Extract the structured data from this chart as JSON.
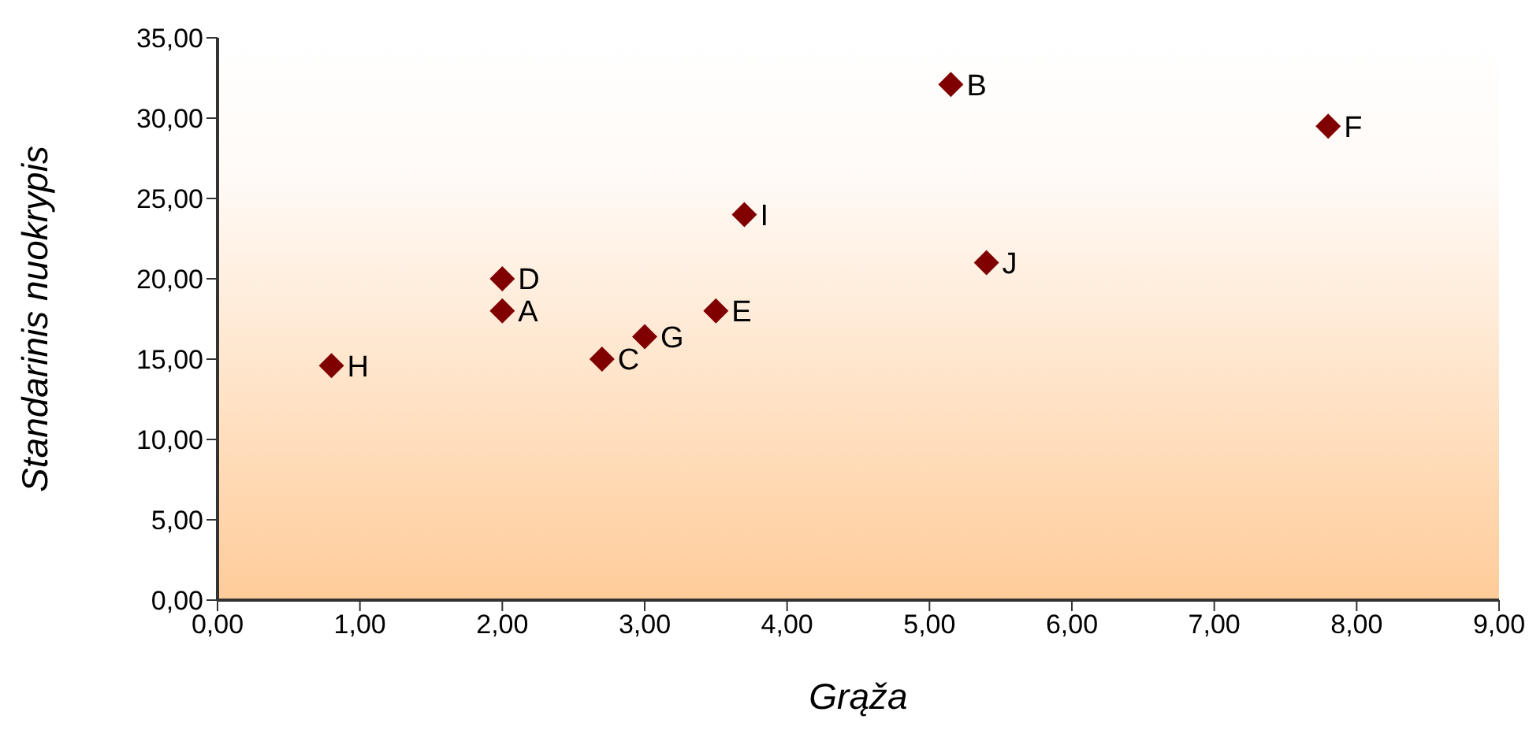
{
  "chart_data": {
    "type": "scatter",
    "xlabel": "Grąža",
    "ylabel": "Standarinis nuokrypis",
    "x": [
      0.8,
      2.0,
      2.0,
      2.7,
      3.0,
      3.5,
      3.7,
      5.15,
      5.4,
      7.8
    ],
    "series": [
      {
        "color": "#800000",
        "values": [
          14.6,
          20.0,
          18.0,
          15.0,
          16.4,
          18.0,
          24.0,
          32.1,
          21.0,
          29.5
        ]
      }
    ],
    "annotations": [
      {
        "text": "H",
        "x": 0.8,
        "y": 14.6
      },
      {
        "text": "D",
        "x": 2.0,
        "y": 20.0
      },
      {
        "text": "A",
        "x": 2.0,
        "y": 18.0
      },
      {
        "text": "C",
        "x": 2.7,
        "y": 15.0
      },
      {
        "text": "G",
        "x": 3.0,
        "y": 16.4
      },
      {
        "text": "E",
        "x": 3.5,
        "y": 18.0
      },
      {
        "text": "I",
        "x": 3.7,
        "y": 24.0
      },
      {
        "text": "B",
        "x": 5.15,
        "y": 32.1
      },
      {
        "text": "J",
        "x": 5.4,
        "y": 21.0
      },
      {
        "text": "F",
        "x": 7.8,
        "y": 29.5
      }
    ],
    "xlim": [
      0,
      9
    ],
    "ylim": [
      0,
      35
    ],
    "xticks": [
      {
        "value": 0,
        "label": "0,00"
      },
      {
        "value": 1,
        "label": "1,00"
      },
      {
        "value": 2,
        "label": "2,00"
      },
      {
        "value": 3,
        "label": "3,00"
      },
      {
        "value": 4,
        "label": "4,00"
      },
      {
        "value": 5,
        "label": "5,00"
      },
      {
        "value": 6,
        "label": "6,00"
      },
      {
        "value": 7,
        "label": "7,00"
      },
      {
        "value": 8,
        "label": "8,00"
      },
      {
        "value": 9,
        "label": "9,00"
      }
    ],
    "yticks": [
      {
        "value": 0,
        "label": "0,00"
      },
      {
        "value": 5,
        "label": "5,00"
      },
      {
        "value": 10,
        "label": "10,00"
      },
      {
        "value": 15,
        "label": "15,00"
      },
      {
        "value": 20,
        "label": "20,00"
      },
      {
        "value": 25,
        "label": "25,00"
      },
      {
        "value": 30,
        "label": "30,00"
      },
      {
        "value": 35,
        "label": "35,00"
      }
    ],
    "grid": false,
    "marker": "diamond"
  }
}
